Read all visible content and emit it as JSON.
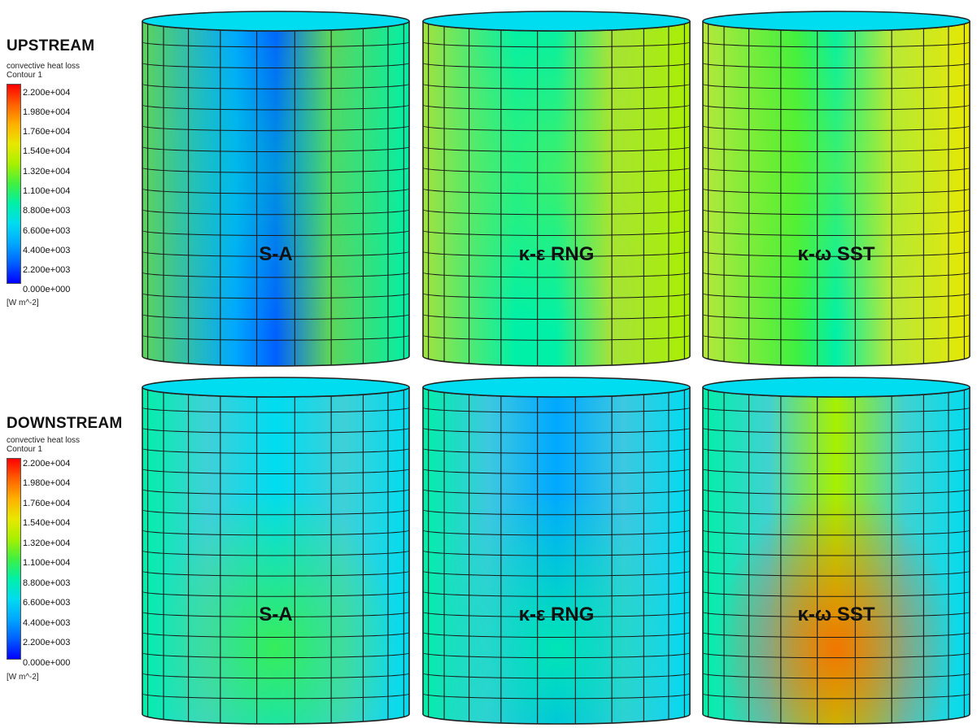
{
  "sections": [
    {
      "title": "UPSTREAM",
      "legend": {
        "variable": "convective heat loss",
        "contour": "Contour 1",
        "ticks": [
          "2.200e+004",
          "1.980e+004",
          "1.760e+004",
          "1.540e+004",
          "1.320e+004",
          "1.100e+004",
          "8.800e+003",
          "6.600e+003",
          "4.400e+003",
          "2.200e+003",
          "0.000e+000"
        ],
        "unit": "[W m^-2]"
      },
      "panels": [
        {
          "label": "S-A",
          "dominant_color": "#5fd45a",
          "hot_level": 0.35
        },
        {
          "label": "κ-ε RNG",
          "dominant_color": "#a6e23a",
          "hot_level": 0.55
        },
        {
          "label": "κ-ω SST",
          "dominant_color": "#b8e83a",
          "hot_level": 0.6
        }
      ]
    },
    {
      "title": "DOWNSTREAM",
      "legend": {
        "variable": "convective heat loss",
        "contour": "Contour 1",
        "ticks": [
          "2.200e+004",
          "1.980e+004",
          "1.760e+004",
          "1.540e+004",
          "1.320e+004",
          "1.100e+004",
          "8.800e+003",
          "6.600e+003",
          "4.400e+003",
          "2.200e+003",
          "0.000e+000"
        ],
        "unit": "[W m^-2]"
      },
      "panels": [
        {
          "label": "S-A",
          "dominant_color": "#3fd0d8",
          "hot_level": 0.45
        },
        {
          "label": "κ-ε RNG",
          "dominant_color": "#3cc8e0",
          "hot_level": 0.35
        },
        {
          "label": "κ-ω SST",
          "dominant_color": "#40d2d0",
          "hot_level": 0.9
        }
      ]
    }
  ],
  "colorscale": [
    "#0000ff",
    "#0060ff",
    "#00a8ff",
    "#00dcf0",
    "#00f0a8",
    "#40f040",
    "#a8f000",
    "#e8e800",
    "#ffb000",
    "#ff6000",
    "#ff0000"
  ]
}
